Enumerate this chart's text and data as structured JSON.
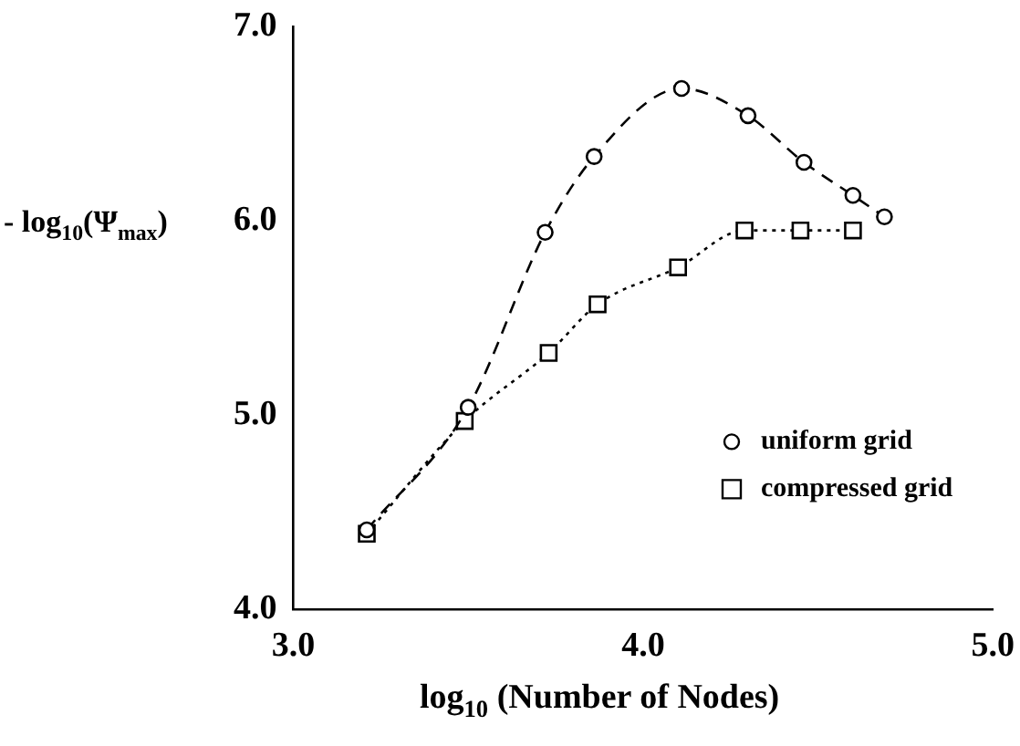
{
  "chart_data": {
    "type": "line",
    "xlabel": "log$_{10}$ (Number of Nodes)",
    "ylabel": "- log$_{10}$(Ψ$_{max}$)",
    "xlim": [
      3.0,
      5.0
    ],
    "xticks": [
      {
        "value": 3,
        "label": "3.0"
      },
      {
        "value": 4,
        "label": "4.0"
      },
      {
        "value": 5,
        "label": "5.0"
      }
    ],
    "ylim": [
      4.0,
      7.0
    ],
    "yticks": [
      {
        "value": 4,
        "label": "4.0"
      },
      {
        "value": 5,
        "label": "5.0"
      },
      {
        "value": 6,
        "label": "6.0"
      },
      {
        "value": 7,
        "label": "7.0"
      }
    ],
    "grid": false,
    "legend": "bottom right",
    "series": [
      {
        "name": "uniform grid",
        "color": "#000000",
        "marker": "circle",
        "line_style": "dashed",
        "x": [
          3.21,
          3.5,
          3.72,
          3.86,
          4.11,
          4.3,
          4.46,
          4.6,
          4.69
        ],
        "values": [
          4.41,
          5.04,
          5.94,
          6.33,
          6.68,
          6.54,
          6.3,
          6.13,
          6.02
        ]
      },
      {
        "name": "compressed grid",
        "color": "#000000",
        "marker": "square",
        "line_style": "dotted",
        "x": [
          3.21,
          3.49,
          3.73,
          3.87,
          4.1,
          4.29,
          4.45,
          4.6
        ],
        "values": [
          4.39,
          4.97,
          5.32,
          5.57,
          5.76,
          5.95,
          5.95,
          5.95
        ]
      }
    ]
  }
}
